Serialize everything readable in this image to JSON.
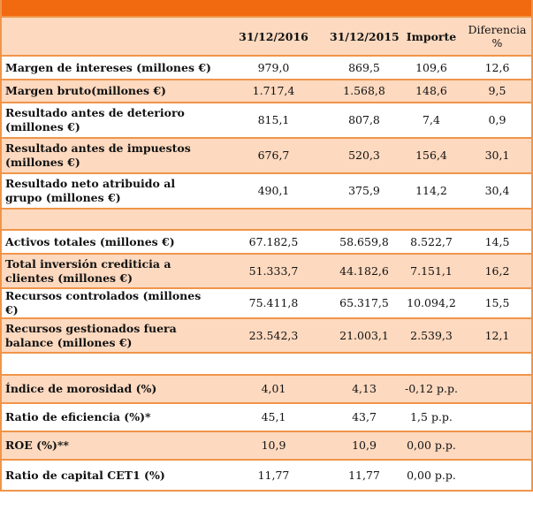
{
  "colors": {
    "accent": "#f26a10",
    "row_alt": "#fdd9bf",
    "border": "#f0954a"
  },
  "header": {
    "col1": "31/12/2016",
    "col2": "31/12/2015",
    "col3": "Importe",
    "col4_line1": "Diferencia",
    "col4_line2": "%"
  },
  "rows": [
    {
      "label": "Margen de intereses (millones  €)",
      "v2016": "979,0",
      "v2015": "869,5",
      "importe": "109,6",
      "dif": "12,6"
    },
    {
      "label": "Margen bruto(millones  €)",
      "v2016": "1.717,4",
      "v2015": "1.568,8",
      "importe": "148,6",
      "dif": "9,5"
    },
    {
      "label": "Resultado antes de deterioro (millones  €)",
      "v2016": "815,1",
      "v2015": "807,8",
      "importe": "7,4",
      "dif": "0,9"
    },
    {
      "label": "Resultado antes de impuestos (millones €)",
      "v2016": "676,7",
      "v2015": "520,3",
      "importe": "156,4",
      "dif": "30,1"
    },
    {
      "label": "Resultado neto atribuido al grupo (millones €)",
      "v2016": "490,1",
      "v2015": "375,9",
      "importe": "114,2",
      "dif": "30,4"
    },
    {
      "label": "",
      "v2016": "",
      "v2015": "",
      "importe": "",
      "dif": ""
    },
    {
      "label": "Activos totales (millones  €)",
      "v2016": "67.182,5",
      "v2015": "58.659,8",
      "importe": "8.522,7",
      "dif": "14,5"
    },
    {
      "label": "Total inversión crediticia a clientes (millones €)",
      "v2016": "51.333,7",
      "v2015": "44.182,6",
      "importe": "7.151,1",
      "dif": "16,2"
    },
    {
      "label": "Recursos controlados (millones €)",
      "v2016": "75.411,8",
      "v2015": "65.317,5",
      "importe": "10.094,2",
      "dif": "15,5"
    },
    {
      "label": "Recursos gestionados fuera balance (millones  €)",
      "v2016": "23.542,3",
      "v2015": "21.003,1",
      "importe": "2.539,3",
      "dif": "12,1"
    },
    {
      "label": "",
      "v2016": "",
      "v2015": "",
      "importe": "",
      "dif": ""
    },
    {
      "label": "Índice de morosidad (%)",
      "v2016": "4,01",
      "v2015": "4,13",
      "importe": "-0,12 p.p.",
      "dif": ""
    },
    {
      "label": "Ratio de eficiencia (%)*",
      "v2016": "45,1",
      "v2015": "43,7",
      "importe": "1,5 p.p.",
      "dif": ""
    },
    {
      "label": "ROE (%)**",
      "v2016": "10,9",
      "v2015": "10,9",
      "importe": "0,00 p.p.",
      "dif": ""
    },
    {
      "label": "Ratio de capital CET1 (%)",
      "v2016": "11,77",
      "v2015": "11,77",
      "importe": "0,00 p.p.",
      "dif": ""
    }
  ]
}
